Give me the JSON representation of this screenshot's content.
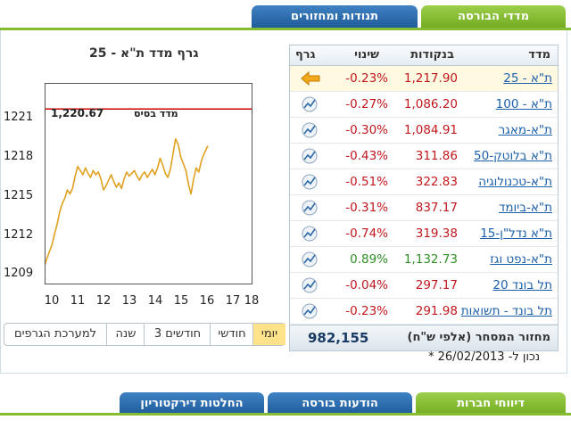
{
  "tabs": {
    "indices": "מדדי הבורסה",
    "turnover": "תנודות ומחזורים"
  },
  "table": {
    "headers": {
      "index": "מדד",
      "points": "בנקודות",
      "change": "שינוי",
      "graph": "גרף"
    },
    "rows": [
      {
        "name": "ת\"א - 25",
        "value": "1,217.90",
        "change": "-0.23%",
        "trend": "down"
      },
      {
        "name": "ת\"א - 100",
        "value": "1,086.20",
        "change": "-0.27%",
        "trend": "down"
      },
      {
        "name": "ת\"א-מאגר",
        "value": "1,084.91",
        "change": "-0.30%",
        "trend": "down"
      },
      {
        "name": "ת\"א בלוטק-50",
        "value": "311.86",
        "change": "-0.43%",
        "trend": "down"
      },
      {
        "name": "ת\"א-טכנולוגיה",
        "value": "322.83",
        "change": "-0.51%",
        "trend": "down"
      },
      {
        "name": "ת\"א-ביומד",
        "value": "837.17",
        "change": "-0.31%",
        "trend": "down"
      },
      {
        "name": "ת\"א נדל\"ן-15",
        "value": "319.38",
        "change": "-0.74%",
        "trend": "down"
      },
      {
        "name": "ת\"א-נפט וגז",
        "value": "1,132.73",
        "change": "0.89%",
        "trend": "up"
      },
      {
        "name": "תל בונד 20",
        "value": "297.17",
        "change": "-0.04%",
        "trend": "down"
      },
      {
        "name": "תל בונד - תשואות",
        "value": "291.98",
        "change": "-0.23%",
        "trend": "down"
      }
    ],
    "turnover_label": "מחזור המסחר (אלפי ש\"ח)",
    "turnover_value": "982,155"
  },
  "as_of": "* נכון ל- 26/02/2013",
  "range_buttons": [
    "יומי",
    "חודשי",
    "3 חודשים",
    "שנה",
    "למערכת הגרפים"
  ],
  "bottom_tabs": {
    "company_reports": "דיווחי חברות",
    "exchange_notices": "הודעות בורסה",
    "board_decisions": "החלטות דירקטוריון"
  },
  "colors": {
    "up": "#2f8f25",
    "down": "#c0181d",
    "line": "#e0a020",
    "base_line": "#cc0000",
    "green_tab": "#84bd33",
    "blue_tab": "#1e5a98"
  },
  "chart_data": {
    "type": "line",
    "title": "גרף מדד ת\"א - 25",
    "base_label": "מדד בסיס",
    "base_value": 1220.67,
    "base_value_label": "1,220.67",
    "xlim": [
      10,
      18
    ],
    "ylim": [
      1208,
      1222.5
    ],
    "xticks": [
      10,
      11,
      12,
      13,
      14,
      15,
      16,
      17,
      18
    ],
    "yticks": [
      1209,
      1212,
      1215,
      1218,
      1221
    ],
    "series": [
      {
        "x": [
          9.95,
          10.05,
          10.15,
          10.25,
          10.35,
          10.45,
          10.55,
          10.65,
          10.75,
          10.85,
          10.95,
          11.05,
          11.15,
          11.25,
          11.35,
          11.45,
          11.55,
          11.65,
          11.75,
          11.85,
          11.95,
          12.05,
          12.15,
          12.25,
          12.35,
          12.45,
          12.55,
          12.65,
          12.75,
          12.85,
          12.95,
          13.05,
          13.15,
          13.25,
          13.35,
          13.45,
          13.55,
          13.65,
          13.75,
          13.85,
          13.95,
          14.05,
          14.15,
          14.25,
          14.35,
          14.45,
          14.55,
          14.65,
          14.75,
          14.85,
          14.95,
          15.05,
          15.15,
          15.25,
          15.35,
          15.45,
          15.55,
          15.65,
          15.75,
          15.85,
          15.95,
          16.05,
          16.15,
          16.25,
          16.3
        ],
        "y": [
          1209.2,
          1209.8,
          1210.3,
          1210.8,
          1211.6,
          1212.3,
          1213.2,
          1213.8,
          1214.2,
          1214.8,
          1214.5,
          1214.9,
          1215.8,
          1216.5,
          1216.2,
          1215.9,
          1216.4,
          1216.0,
          1215.7,
          1216.2,
          1215.9,
          1216.1,
          1215.6,
          1214.8,
          1215.1,
          1215.5,
          1215.9,
          1215.4,
          1215.0,
          1215.3,
          1214.9,
          1215.6,
          1216.1,
          1215.8,
          1216.0,
          1216.2,
          1215.8,
          1215.5,
          1215.9,
          1216.1,
          1215.7,
          1216.0,
          1216.3,
          1215.9,
          1216.4,
          1217.1,
          1216.6,
          1216.0,
          1215.7,
          1216.3,
          1217.4,
          1218.5,
          1218.1,
          1217.2,
          1216.7,
          1216.2,
          1215.2,
          1214.5,
          1215.6,
          1216.4,
          1216.1,
          1216.9,
          1217.4,
          1217.8,
          1218.0
        ]
      }
    ]
  }
}
